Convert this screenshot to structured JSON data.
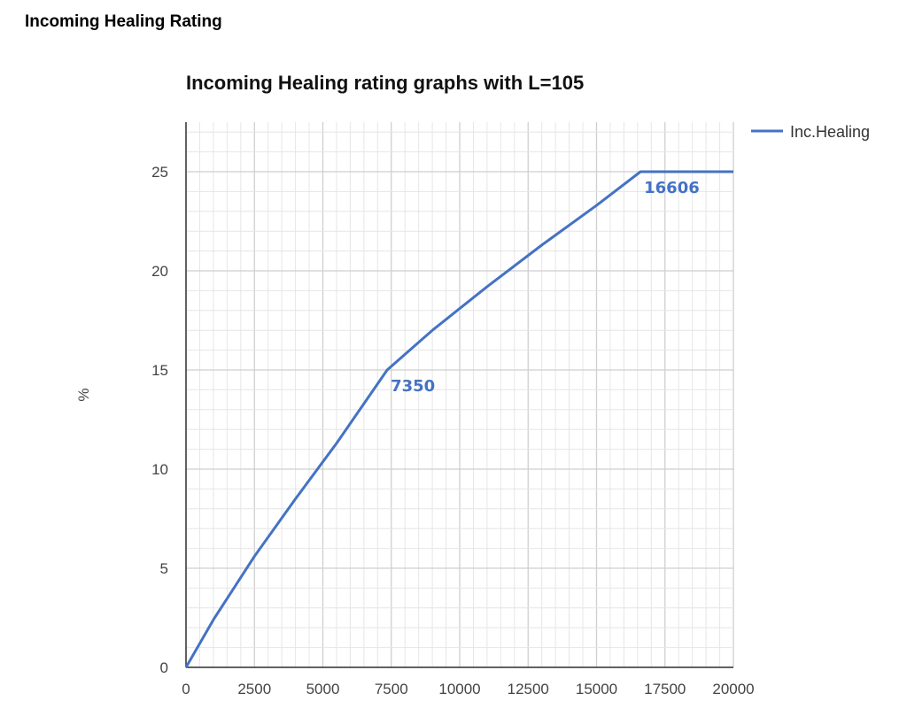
{
  "page": {
    "heading": "Incoming Healing Rating"
  },
  "chart_data": {
    "type": "line",
    "title": "Incoming Healing rating graphs with L=105",
    "xlabel": "",
    "ylabel": "%",
    "xlim": [
      0,
      20000
    ],
    "ylim": [
      0,
      27.5
    ],
    "x_ticks": [
      0,
      2500,
      5000,
      7500,
      10000,
      12500,
      15000,
      17500,
      20000
    ],
    "y_ticks": [
      0,
      5,
      10,
      15,
      20,
      25
    ],
    "grid": true,
    "legend_position": "top-right",
    "series": [
      {
        "name": "Inc.Healing",
        "color": "#4472c4",
        "x": [
          0,
          1000,
          2500,
          4000,
          5500,
          7350,
          9000,
          11000,
          13000,
          15000,
          16606,
          20000
        ],
        "y": [
          0,
          2.4,
          5.6,
          8.5,
          11.3,
          15.0,
          17.0,
          19.2,
          21.3,
          23.3,
          25.0,
          25.0
        ]
      }
    ],
    "annotations": [
      {
        "text": "7350",
        "x": 7350,
        "y": 15.0
      },
      {
        "text": "16606",
        "x": 16606,
        "y": 25.0
      }
    ]
  }
}
